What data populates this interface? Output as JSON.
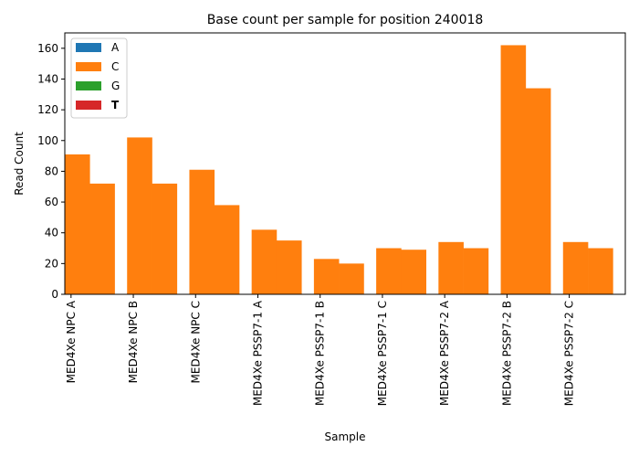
{
  "chart_data": {
    "type": "bar",
    "title": "Base count per sample for position 240018",
    "xlabel": "Sample",
    "ylabel": "Read Count",
    "ylim": [
      0,
      170
    ],
    "yticks": [
      0,
      20,
      40,
      60,
      80,
      100,
      120,
      140,
      160
    ],
    "categories": [
      "MED4Xe NPC A",
      "MED4Xe NPC B",
      "MED4Xe NPC C",
      "MED4Xe PSSP7-1 A",
      "MED4Xe PSSP7-1 B",
      "MED4Xe PSSP7-1 C",
      "MED4Xe PSSP7-2 A",
      "MED4Xe PSSP7-2 B",
      "MED4Xe PSSP7-2 C"
    ],
    "legend_position": "top-left",
    "grid": false,
    "bars_per_category": 2,
    "series": [
      {
        "name": "A",
        "color": "#1f77b4",
        "values": [
          [
            0,
            0
          ],
          [
            1,
            0
          ],
          [
            0,
            0
          ],
          [
            0,
            1
          ],
          [
            0,
            0
          ],
          [
            0,
            0
          ],
          [
            0,
            0
          ],
          [
            0,
            0
          ],
          [
            0,
            0
          ]
        ]
      },
      {
        "name": "C",
        "color": "#ff7f0e",
        "values": [
          [
            91,
            72
          ],
          [
            102,
            72
          ],
          [
            81,
            58
          ],
          [
            42,
            35
          ],
          [
            23,
            20
          ],
          [
            30,
            29
          ],
          [
            34,
            30
          ],
          [
            162,
            134
          ],
          [
            34,
            30
          ]
        ]
      },
      {
        "name": "G",
        "color": "#2ca02c",
        "values": [
          [
            0,
            0
          ],
          [
            0,
            0
          ],
          [
            0,
            0
          ],
          [
            0,
            0
          ],
          [
            0,
            0
          ],
          [
            0,
            0
          ],
          [
            0,
            0
          ],
          [
            0,
            0
          ],
          [
            0,
            0
          ]
        ]
      },
      {
        "name": "T",
        "color": "#d62728",
        "values": [
          [
            0,
            0
          ],
          [
            0,
            0
          ],
          [
            0,
            0
          ],
          [
            0,
            0
          ],
          [
            0,
            0
          ],
          [
            0,
            0
          ],
          [
            0,
            0
          ],
          [
            0,
            0
          ],
          [
            0,
            0
          ]
        ]
      }
    ]
  }
}
